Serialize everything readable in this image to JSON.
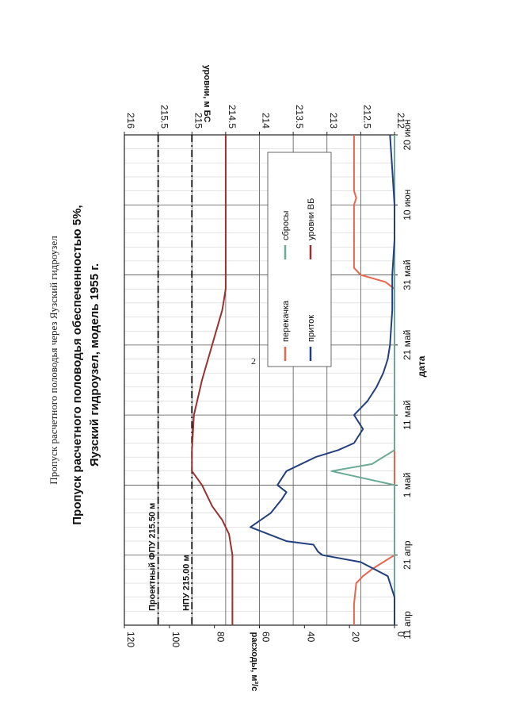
{
  "page": {
    "number": "2",
    "caption": "Пропуск расчетного половодья через Яузский гидроузел"
  },
  "chart_data": {
    "type": "line",
    "title_line1": "Пропуск расчетного половодья обеспеченностью 5%,",
    "title_line2": "Яузский гидроузел, модель 1955 г.",
    "xlabel": "дата",
    "ylabel_left": "расходы, м³/с",
    "ylabel_right": "уровни, м БС",
    "x_tick_labels": [
      "11 апр",
      "21 апр",
      "1 май",
      "11 май",
      "21 май",
      "31 май",
      "10 июн",
      "20 июн"
    ],
    "x_range_days": [
      0,
      70
    ],
    "ylim_left": [
      0,
      120
    ],
    "y_ticks_left": [
      "0",
      "20",
      "40",
      "60",
      "80",
      "100",
      "120"
    ],
    "ylim_right": [
      212,
      216
    ],
    "y_ticks_right": [
      "212",
      "212.5",
      "213",
      "213.5",
      "214",
      "214.5",
      "215",
      "215.5",
      "216"
    ],
    "grid": true,
    "legend_position": "right",
    "reference_lines": [
      {
        "label": "Проектный ФПУ 215.50 м",
        "value": 215.5
      },
      {
        "label": "НПУ 215.00 м",
        "value": 215.0
      }
    ],
    "series": [
      {
        "name": "перекачка",
        "axis": "left",
        "color": "#e8654e",
        "x": [
          0,
          3,
          6,
          7,
          8,
          9,
          10,
          48,
          49,
          50,
          51,
          52,
          60,
          61,
          62,
          63,
          65,
          70
        ],
        "y": [
          18,
          18,
          17,
          14,
          10,
          5,
          0,
          0,
          4,
          15,
          18,
          18,
          18,
          17,
          18,
          18,
          18,
          18
        ]
      },
      {
        "name": "сбросы",
        "axis": "left",
        "color": "#6aaa96",
        "x": [
          0,
          20,
          22,
          23,
          25,
          70
        ],
        "y": [
          0,
          0,
          28,
          10,
          0,
          0
        ]
      },
      {
        "name": "приток",
        "axis": "left",
        "color": "#23407e",
        "x": [
          0,
          4,
          7,
          9,
          10,
          10.5,
          11.5,
          12,
          14,
          16,
          18,
          19,
          20,
          21,
          22,
          24,
          25,
          26,
          27,
          28,
          30,
          32,
          34,
          36,
          38,
          40,
          45,
          50,
          55,
          60,
          65,
          70
        ],
        "y": [
          0,
          0,
          3,
          15,
          32,
          34,
          36,
          48,
          64,
          55,
          50,
          48,
          52,
          50,
          48,
          35,
          25,
          18,
          16,
          14,
          18,
          12,
          8,
          5,
          3,
          2,
          1,
          1,
          0,
          0,
          1,
          2
        ]
      },
      {
        "name": "уровни ВБ",
        "axis": "right",
        "color": "#9b3030",
        "x": [
          0,
          10,
          13,
          15,
          17,
          20,
          22,
          25,
          30,
          35,
          40,
          45,
          48,
          70
        ],
        "y": [
          214.4,
          214.4,
          214.45,
          214.55,
          214.7,
          214.85,
          215.0,
          215.0,
          214.97,
          214.85,
          214.7,
          214.55,
          214.5,
          214.5
        ]
      }
    ]
  }
}
